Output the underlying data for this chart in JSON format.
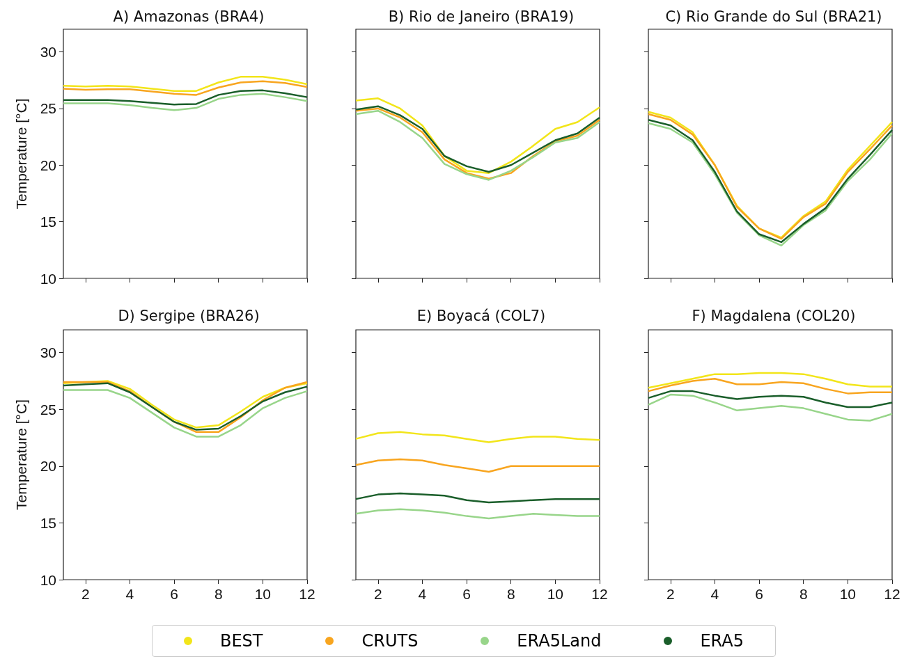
{
  "chart_data": [
    {
      "type": "line",
      "title": "A) Amazonas (BRA4)",
      "ylabel": "Temperature [°C]",
      "x": [
        1,
        2,
        3,
        4,
        5,
        6,
        7,
        8,
        9,
        10,
        11,
        12
      ],
      "xlim": [
        1,
        12
      ],
      "xticks": [
        2,
        4,
        6,
        8,
        10,
        12
      ],
      "ylim": [
        10,
        32
      ],
      "yticks": [
        10,
        15,
        20,
        25,
        30
      ],
      "tick_labels": "y",
      "legend": "bottom",
      "series": [
        {
          "name": "BEST",
          "color": "#f2e51a",
          "values": [
            27.0,
            26.95,
            27.0,
            26.95,
            26.75,
            26.55,
            26.55,
            27.3,
            27.8,
            27.8,
            27.55,
            27.15
          ]
        },
        {
          "name": "CRUTS",
          "color": "#f8a51f",
          "values": [
            26.75,
            26.65,
            26.7,
            26.7,
            26.5,
            26.3,
            26.2,
            26.85,
            27.3,
            27.4,
            27.25,
            26.9
          ]
        },
        {
          "name": "ERA5Land",
          "color": "#98d58a",
          "values": [
            25.45,
            25.45,
            25.45,
            25.3,
            25.05,
            24.85,
            25.05,
            25.85,
            26.2,
            26.3,
            26.0,
            25.65
          ]
        },
        {
          "name": "ERA5",
          "color": "#1a5e2a",
          "values": [
            25.75,
            25.75,
            25.75,
            25.65,
            25.5,
            25.35,
            25.4,
            26.2,
            26.55,
            26.6,
            26.35,
            26.0
          ]
        }
      ]
    },
    {
      "type": "line",
      "title": "B) Rio de Janeiro (BRA19)",
      "x": [
        1,
        2,
        3,
        4,
        5,
        6,
        7,
        8,
        9,
        10,
        11,
        12
      ],
      "xlim": [
        1,
        12
      ],
      "xticks": [
        2,
        4,
        6,
        8,
        10,
        12
      ],
      "ylim": [
        10,
        32
      ],
      "yticks": [
        10,
        15,
        20,
        25,
        30
      ],
      "tick_labels": false,
      "series": [
        {
          "color": "#f2e51a",
          "values": [
            25.7,
            25.9,
            25.0,
            23.5,
            20.8,
            19.5,
            19.3,
            20.3,
            21.7,
            23.2,
            23.8,
            25.1
          ]
        },
        {
          "color": "#f8a51f",
          "values": [
            24.8,
            25.0,
            24.2,
            22.9,
            20.5,
            19.3,
            18.8,
            19.3,
            20.8,
            22.1,
            22.6,
            24.0
          ]
        },
        {
          "color": "#98d58a",
          "values": [
            24.5,
            24.8,
            23.8,
            22.4,
            20.1,
            19.2,
            18.7,
            19.5,
            20.7,
            22.0,
            22.4,
            23.8
          ]
        },
        {
          "color": "#1a5e2a",
          "values": [
            24.9,
            25.2,
            24.4,
            23.2,
            20.8,
            19.9,
            19.4,
            20.0,
            21.1,
            22.2,
            22.8,
            24.2
          ]
        }
      ]
    },
    {
      "type": "line",
      "title": "C) Rio Grande do Sul (BRA21)",
      "x": [
        1,
        2,
        3,
        4,
        5,
        6,
        7,
        8,
        9,
        10,
        11,
        12
      ],
      "xlim": [
        1,
        12
      ],
      "xticks": [
        2,
        4,
        6,
        8,
        10,
        12
      ],
      "ylim": [
        10,
        32
      ],
      "yticks": [
        10,
        15,
        20,
        25,
        30
      ],
      "tick_labels": false,
      "series": [
        {
          "color": "#f2e51a",
          "values": [
            24.7,
            24.2,
            22.9,
            20.0,
            16.4,
            14.4,
            13.6,
            15.5,
            16.8,
            19.6,
            21.7,
            23.8
          ]
        },
        {
          "color": "#f8a51f",
          "values": [
            24.5,
            24.0,
            22.7,
            20.0,
            16.3,
            14.4,
            13.5,
            15.4,
            16.6,
            19.4,
            21.4,
            23.5
          ]
        },
        {
          "color": "#98d58a",
          "values": [
            23.7,
            23.2,
            22.0,
            19.2,
            15.8,
            13.8,
            12.9,
            14.7,
            16.0,
            18.6,
            20.5,
            22.8
          ]
        },
        {
          "color": "#1a5e2a",
          "values": [
            24.0,
            23.5,
            22.2,
            19.4,
            15.9,
            13.9,
            13.2,
            14.8,
            16.2,
            18.8,
            20.9,
            23.1
          ]
        }
      ]
    },
    {
      "type": "line",
      "title": "D) Sergipe (BRA26)",
      "ylabel": "Temperature [°C]",
      "x": [
        1,
        2,
        3,
        4,
        5,
        6,
        7,
        8,
        9,
        10,
        11,
        12
      ],
      "xlim": [
        1,
        12
      ],
      "xticks": [
        2,
        4,
        6,
        8,
        10,
        12
      ],
      "ylim": [
        10,
        32
      ],
      "yticks": [
        10,
        15,
        20,
        25,
        30
      ],
      "series": [
        {
          "color": "#f2e51a",
          "values": [
            27.3,
            27.4,
            27.5,
            26.8,
            25.4,
            24.1,
            23.4,
            23.6,
            24.8,
            26.1,
            26.9,
            27.3
          ]
        },
        {
          "color": "#f8a51f",
          "values": [
            27.4,
            27.4,
            27.4,
            26.6,
            25.2,
            23.9,
            23.0,
            23.0,
            24.3,
            25.8,
            26.9,
            27.4
          ]
        },
        {
          "color": "#98d58a",
          "values": [
            26.7,
            26.7,
            26.7,
            26.0,
            24.7,
            23.4,
            22.6,
            22.6,
            23.6,
            25.1,
            26.0,
            26.6
          ]
        },
        {
          "color": "#1a5e2a",
          "values": [
            27.1,
            27.2,
            27.3,
            26.5,
            25.2,
            23.9,
            23.2,
            23.3,
            24.4,
            25.7,
            26.5,
            27.0
          ]
        }
      ]
    },
    {
      "type": "line",
      "title": "E) Boyacá (COL7)",
      "x": [
        1,
        2,
        3,
        4,
        5,
        6,
        7,
        8,
        9,
        10,
        11,
        12
      ],
      "xlim": [
        1,
        12
      ],
      "xticks": [
        2,
        4,
        6,
        8,
        10,
        12
      ],
      "ylim": [
        10,
        32
      ],
      "yticks": [
        10,
        15,
        20,
        25,
        30
      ],
      "tick_labels": "x",
      "series": [
        {
          "color": "#f2e51a",
          "values": [
            22.4,
            22.9,
            23.0,
            22.8,
            22.7,
            22.4,
            22.1,
            22.4,
            22.6,
            22.6,
            22.4,
            22.3
          ]
        },
        {
          "color": "#f8a51f",
          "values": [
            20.1,
            20.5,
            20.6,
            20.5,
            20.1,
            19.8,
            19.5,
            20.0,
            20.0,
            20.0,
            20.0,
            20.0
          ]
        },
        {
          "color": "#98d58a",
          "values": [
            15.8,
            16.1,
            16.2,
            16.1,
            15.9,
            15.6,
            15.4,
            15.6,
            15.8,
            15.7,
            15.6,
            15.6
          ]
        },
        {
          "color": "#1a5e2a",
          "values": [
            17.1,
            17.5,
            17.6,
            17.5,
            17.4,
            17.0,
            16.8,
            16.9,
            17.0,
            17.1,
            17.1,
            17.1
          ]
        }
      ]
    },
    {
      "type": "line",
      "title": "F) Magdalena (COL20)",
      "x": [
        1,
        2,
        3,
        4,
        5,
        6,
        7,
        8,
        9,
        10,
        11,
        12
      ],
      "xlim": [
        1,
        12
      ],
      "xticks": [
        2,
        4,
        6,
        8,
        10,
        12
      ],
      "ylim": [
        10,
        32
      ],
      "yticks": [
        10,
        15,
        20,
        25,
        30
      ],
      "tick_labels": "x",
      "series": [
        {
          "color": "#f2e51a",
          "values": [
            26.9,
            27.3,
            27.7,
            28.1,
            28.1,
            28.2,
            28.2,
            28.1,
            27.7,
            27.2,
            27.0,
            27.0
          ]
        },
        {
          "color": "#f8a51f",
          "values": [
            26.6,
            27.1,
            27.5,
            27.7,
            27.2,
            27.2,
            27.4,
            27.3,
            26.8,
            26.4,
            26.5,
            26.5
          ]
        },
        {
          "color": "#98d58a",
          "values": [
            25.4,
            26.3,
            26.2,
            25.6,
            24.9,
            25.1,
            25.3,
            25.1,
            24.6,
            24.1,
            24.0,
            24.6
          ]
        },
        {
          "color": "#1a5e2a",
          "values": [
            26.0,
            26.6,
            26.6,
            26.2,
            25.9,
            26.1,
            26.2,
            26.1,
            25.6,
            25.2,
            25.2,
            25.6
          ]
        }
      ]
    }
  ]
}
